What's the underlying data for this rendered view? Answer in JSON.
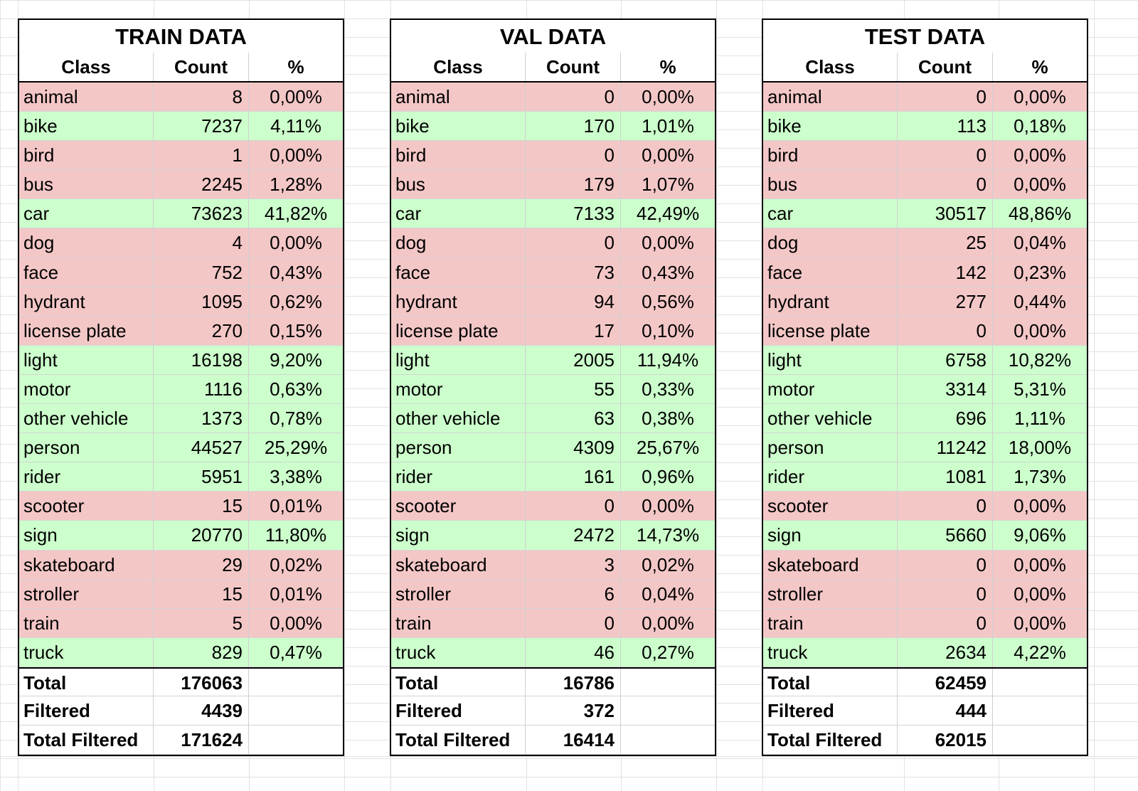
{
  "header_labels": {
    "class": "Class",
    "count": "Count",
    "pct": "%"
  },
  "colors": {
    "low": "#f4c7c7",
    "ok": "#ccffcc"
  },
  "tables": [
    {
      "title": "TRAIN DATA",
      "rows": [
        {
          "cls": "animal",
          "count": "8",
          "pct": "0,00%",
          "status": "low"
        },
        {
          "cls": "bike",
          "count": "7237",
          "pct": "4,11%",
          "status": "ok"
        },
        {
          "cls": "bird",
          "count": "1",
          "pct": "0,00%",
          "status": "low"
        },
        {
          "cls": "bus",
          "count": "2245",
          "pct": "1,28%",
          "status": "low"
        },
        {
          "cls": "car",
          "count": "73623",
          "pct": "41,82%",
          "status": "ok"
        },
        {
          "cls": "dog",
          "count": "4",
          "pct": "0,00%",
          "status": "low"
        },
        {
          "cls": "face",
          "count": "752",
          "pct": "0,43%",
          "status": "low"
        },
        {
          "cls": "hydrant",
          "count": "1095",
          "pct": "0,62%",
          "status": "low"
        },
        {
          "cls": "license plate",
          "count": "270",
          "pct": "0,15%",
          "status": "low"
        },
        {
          "cls": "light",
          "count": "16198",
          "pct": "9,20%",
          "status": "ok"
        },
        {
          "cls": "motor",
          "count": "1116",
          "pct": "0,63%",
          "status": "ok"
        },
        {
          "cls": "other vehicle",
          "count": "1373",
          "pct": "0,78%",
          "status": "ok"
        },
        {
          "cls": "person",
          "count": "44527",
          "pct": "25,29%",
          "status": "ok"
        },
        {
          "cls": "rider",
          "count": "5951",
          "pct": "3,38%",
          "status": "ok"
        },
        {
          "cls": "scooter",
          "count": "15",
          "pct": "0,01%",
          "status": "low"
        },
        {
          "cls": "sign",
          "count": "20770",
          "pct": "11,80%",
          "status": "ok"
        },
        {
          "cls": "skateboard",
          "count": "29",
          "pct": "0,02%",
          "status": "low"
        },
        {
          "cls": "stroller",
          "count": "15",
          "pct": "0,01%",
          "status": "low"
        },
        {
          "cls": "train",
          "count": "5",
          "pct": "0,00%",
          "status": "low"
        },
        {
          "cls": "truck",
          "count": "829",
          "pct": "0,47%",
          "status": "ok"
        }
      ],
      "totals": [
        {
          "label": "Total",
          "value": "176063"
        },
        {
          "label": "Filtered",
          "value": "4439"
        },
        {
          "label": "Total Filtered",
          "value": "171624"
        }
      ]
    },
    {
      "title": "VAL DATA",
      "rows": [
        {
          "cls": "animal",
          "count": "0",
          "pct": "0,00%",
          "status": "low"
        },
        {
          "cls": "bike",
          "count": "170",
          "pct": "1,01%",
          "status": "ok"
        },
        {
          "cls": "bird",
          "count": "0",
          "pct": "0,00%",
          "status": "low"
        },
        {
          "cls": "bus",
          "count": "179",
          "pct": "1,07%",
          "status": "low"
        },
        {
          "cls": "car",
          "count": "7133",
          "pct": "42,49%",
          "status": "ok"
        },
        {
          "cls": "dog",
          "count": "0",
          "pct": "0,00%",
          "status": "low"
        },
        {
          "cls": "face",
          "count": "73",
          "pct": "0,43%",
          "status": "low"
        },
        {
          "cls": "hydrant",
          "count": "94",
          "pct": "0,56%",
          "status": "low"
        },
        {
          "cls": "license plate",
          "count": "17",
          "pct": "0,10%",
          "status": "low"
        },
        {
          "cls": "light",
          "count": "2005",
          "pct": "11,94%",
          "status": "ok"
        },
        {
          "cls": "motor",
          "count": "55",
          "pct": "0,33%",
          "status": "ok"
        },
        {
          "cls": "other vehicle",
          "count": "63",
          "pct": "0,38%",
          "status": "ok"
        },
        {
          "cls": "person",
          "count": "4309",
          "pct": "25,67%",
          "status": "ok"
        },
        {
          "cls": "rider",
          "count": "161",
          "pct": "0,96%",
          "status": "ok"
        },
        {
          "cls": "scooter",
          "count": "0",
          "pct": "0,00%",
          "status": "low"
        },
        {
          "cls": "sign",
          "count": "2472",
          "pct": "14,73%",
          "status": "ok"
        },
        {
          "cls": "skateboard",
          "count": "3",
          "pct": "0,02%",
          "status": "low"
        },
        {
          "cls": "stroller",
          "count": "6",
          "pct": "0,04%",
          "status": "low"
        },
        {
          "cls": "train",
          "count": "0",
          "pct": "0,00%",
          "status": "low"
        },
        {
          "cls": "truck",
          "count": "46",
          "pct": "0,27%",
          "status": "ok"
        }
      ],
      "totals": [
        {
          "label": "Total",
          "value": "16786"
        },
        {
          "label": "Filtered",
          "value": "372"
        },
        {
          "label": "Total Filtered",
          "value": "16414"
        }
      ]
    },
    {
      "title": "TEST DATA",
      "rows": [
        {
          "cls": "animal",
          "count": "0",
          "pct": "0,00%",
          "status": "low"
        },
        {
          "cls": "bike",
          "count": "113",
          "pct": "0,18%",
          "status": "ok"
        },
        {
          "cls": "bird",
          "count": "0",
          "pct": "0,00%",
          "status": "low"
        },
        {
          "cls": "bus",
          "count": "0",
          "pct": "0,00%",
          "status": "low"
        },
        {
          "cls": "car",
          "count": "30517",
          "pct": "48,86%",
          "status": "ok"
        },
        {
          "cls": "dog",
          "count": "25",
          "pct": "0,04%",
          "status": "low"
        },
        {
          "cls": "face",
          "count": "142",
          "pct": "0,23%",
          "status": "low"
        },
        {
          "cls": "hydrant",
          "count": "277",
          "pct": "0,44%",
          "status": "low"
        },
        {
          "cls": "license plate",
          "count": "0",
          "pct": "0,00%",
          "status": "low"
        },
        {
          "cls": "light",
          "count": "6758",
          "pct": "10,82%",
          "status": "ok"
        },
        {
          "cls": "motor",
          "count": "3314",
          "pct": "5,31%",
          "status": "ok"
        },
        {
          "cls": "other vehicle",
          "count": "696",
          "pct": "1,11%",
          "status": "ok"
        },
        {
          "cls": "person",
          "count": "11242",
          "pct": "18,00%",
          "status": "ok"
        },
        {
          "cls": "rider",
          "count": "1081",
          "pct": "1,73%",
          "status": "ok"
        },
        {
          "cls": "scooter",
          "count": "0",
          "pct": "0,00%",
          "status": "low"
        },
        {
          "cls": "sign",
          "count": "5660",
          "pct": "9,06%",
          "status": "ok"
        },
        {
          "cls": "skateboard",
          "count": "0",
          "pct": "0,00%",
          "status": "low"
        },
        {
          "cls": "stroller",
          "count": "0",
          "pct": "0,00%",
          "status": "low"
        },
        {
          "cls": "train",
          "count": "0",
          "pct": "0,00%",
          "status": "low"
        },
        {
          "cls": "truck",
          "count": "2634",
          "pct": "4,22%",
          "status": "ok"
        }
      ],
      "totals": [
        {
          "label": "Total",
          "value": "62459"
        },
        {
          "label": "Filtered",
          "value": "444"
        },
        {
          "label": "Total Filtered",
          "value": "62015"
        }
      ]
    }
  ]
}
